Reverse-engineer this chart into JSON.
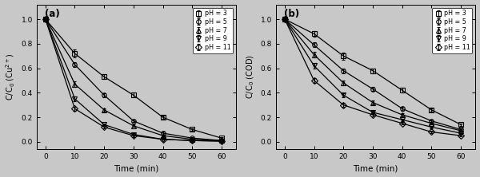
{
  "time": [
    0,
    10,
    20,
    30,
    40,
    50,
    60
  ],
  "panel_a": {
    "label": "(a)",
    "ylabel": "C/C$_0$ (Cu$^{2+}$)",
    "series": {
      "pH = 3": [
        1.0,
        0.72,
        0.53,
        0.38,
        0.2,
        0.1,
        0.03
      ],
      "pH = 5": [
        1.0,
        0.63,
        0.38,
        0.17,
        0.07,
        0.03,
        0.01
      ],
      "pH = 7": [
        1.0,
        0.47,
        0.26,
        0.13,
        0.05,
        0.02,
        0.01
      ],
      "pH = 9": [
        1.0,
        0.35,
        0.14,
        0.06,
        0.02,
        0.01,
        0.005
      ],
      "pH = 11": [
        1.0,
        0.27,
        0.12,
        0.05,
        0.02,
        0.01,
        0.005
      ]
    },
    "error_bars": {
      "pH = 3": [
        0.0,
        0.03,
        0.02,
        0.02,
        0.015,
        0.01,
        0.005
      ],
      "pH = 5": [
        0.0,
        0.02,
        0.015,
        0.01,
        0.01,
        0.005,
        0.005
      ],
      "pH = 7": [
        0.0,
        0.02,
        0.015,
        0.01,
        0.005,
        0.005,
        0.005
      ],
      "pH = 9": [
        0.0,
        0.02,
        0.01,
        0.01,
        0.005,
        0.005,
        0.005
      ],
      "pH = 11": [
        0.0,
        0.015,
        0.01,
        0.01,
        0.005,
        0.005,
        0.005
      ]
    }
  },
  "panel_b": {
    "label": "(b)",
    "ylabel": "C/C$_0$ (COD)",
    "series": {
      "pH = 3": [
        1.0,
        0.88,
        0.7,
        0.58,
        0.42,
        0.26,
        0.14
      ],
      "pH = 5": [
        1.0,
        0.79,
        0.58,
        0.43,
        0.27,
        0.17,
        0.1
      ],
      "pH = 7": [
        1.0,
        0.71,
        0.48,
        0.32,
        0.22,
        0.15,
        0.09
      ],
      "pH = 9": [
        1.0,
        0.62,
        0.38,
        0.24,
        0.18,
        0.12,
        0.07
      ],
      "pH = 11": [
        1.0,
        0.5,
        0.3,
        0.22,
        0.15,
        0.08,
        0.05
      ]
    },
    "error_bars": {
      "pH = 3": [
        0.0,
        0.02,
        0.03,
        0.02,
        0.02,
        0.015,
        0.01
      ],
      "pH = 5": [
        0.0,
        0.02,
        0.02,
        0.015,
        0.015,
        0.01,
        0.01
      ],
      "pH = 7": [
        0.0,
        0.025,
        0.02,
        0.015,
        0.01,
        0.01,
        0.01
      ],
      "pH = 9": [
        0.0,
        0.02,
        0.015,
        0.015,
        0.01,
        0.01,
        0.01
      ],
      "pH = 11": [
        0.0,
        0.02,
        0.015,
        0.01,
        0.01,
        0.01,
        0.005
      ]
    }
  },
  "markers": [
    "s",
    "o",
    "^",
    "v",
    "D"
  ],
  "xlabel": "Time (min)",
  "xlim": [
    -3,
    65
  ],
  "ylim": [
    -0.06,
    1.12
  ],
  "yticks": [
    0.0,
    0.2,
    0.4,
    0.6,
    0.8,
    1.0
  ],
  "xticks": [
    0,
    10,
    20,
    30,
    40,
    50,
    60
  ],
  "bg_color": "#c8c8c8",
  "plot_bg_color": "#c8c8c8",
  "legend_pHs": [
    "pH = 3",
    "pH = 5",
    "pH = 7",
    "pH = 9",
    "pH = 11"
  ]
}
